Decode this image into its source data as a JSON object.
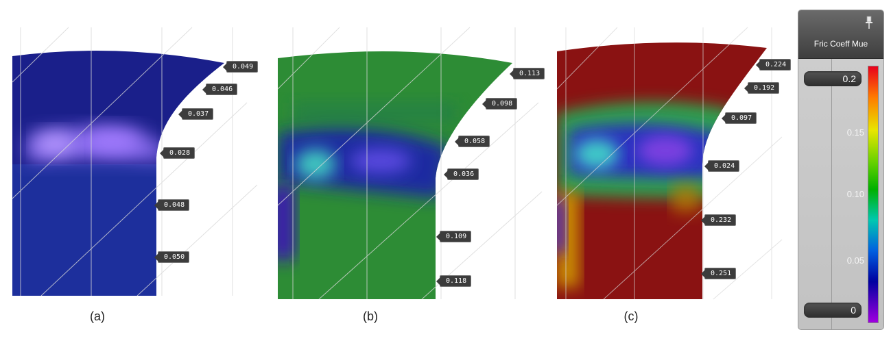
{
  "panels": [
    {
      "caption": "(a)",
      "labels": [
        "0.049",
        "0.046",
        "0.037",
        "0.028",
        "0.048",
        "0.050"
      ],
      "base_color": "#1a1f8a",
      "band_color": "#8a6cf0"
    },
    {
      "caption": "(b)",
      "labels": [
        "0.113",
        "0.098",
        "0.058",
        "0.036",
        "0.109",
        "0.118"
      ],
      "base_color": "#2d8c35",
      "band_color": "#1a2aa0"
    },
    {
      "caption": "(c)",
      "labels": [
        "0.224",
        "0.192",
        "0.097",
        "0.024",
        "0.232",
        "0.251"
      ],
      "base_color": "#8a1212",
      "band_color": "#2a30c0"
    }
  ],
  "legend": {
    "title": "Fric Coeff Mue",
    "max_value": "0.2",
    "min_value": "0",
    "ticks": [
      "0.15",
      "0.10",
      "0.05"
    ],
    "pin_icon": "pin-icon"
  }
}
